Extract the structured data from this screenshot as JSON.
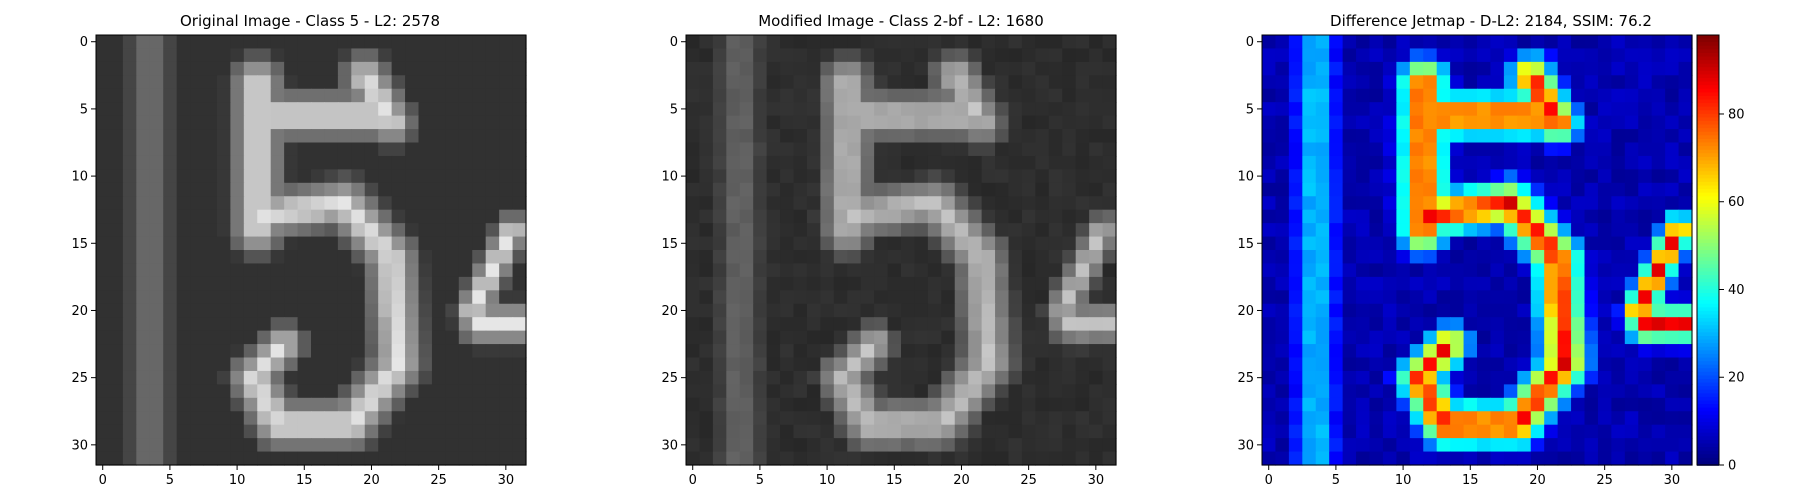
{
  "chart_data": [
    {
      "type": "heatmap",
      "colormap": "gray",
      "title": "Original Image - Class 5 - L2: 2578",
      "title_color": "#000000",
      "xlim": [
        -0.5,
        31.5
      ],
      "ylim": [
        31.5,
        -0.5
      ],
      "xticks": [
        "0",
        "5",
        "10",
        "15",
        "20",
        "25",
        "30"
      ],
      "yticks": [
        "0",
        "5",
        "10",
        "15",
        "20",
        "25",
        "30"
      ],
      "grid": false
    },
    {
      "type": "heatmap",
      "colormap": "gray",
      "title": "Modified Image - Class 2-bf - L2: 1680",
      "title_color": "#ff0000",
      "xlim": [
        -0.5,
        31.5
      ],
      "ylim": [
        31.5,
        -0.5
      ],
      "xticks": [
        "0",
        "5",
        "10",
        "15",
        "20",
        "25",
        "30"
      ],
      "yticks": [
        "0",
        "5",
        "10",
        "15",
        "20",
        "25",
        "30"
      ],
      "grid": false
    },
    {
      "type": "heatmap",
      "colormap": "jet",
      "title": "Difference Jetmap - D-L2: 2184, SSIM: 76.2",
      "title_color": "#000000",
      "xlim": [
        -0.5,
        31.5
      ],
      "ylim": [
        31.5,
        -0.5
      ],
      "xticks": [
        "0",
        "5",
        "10",
        "15",
        "20",
        "25",
        "30"
      ],
      "yticks": [
        "0",
        "5",
        "10",
        "15",
        "20",
        "25",
        "30"
      ],
      "colorbar_range": [
        0,
        98
      ],
      "colorbar_ticks": [
        "0",
        "20",
        "40",
        "60",
        "80"
      ],
      "grid": false
    }
  ]
}
